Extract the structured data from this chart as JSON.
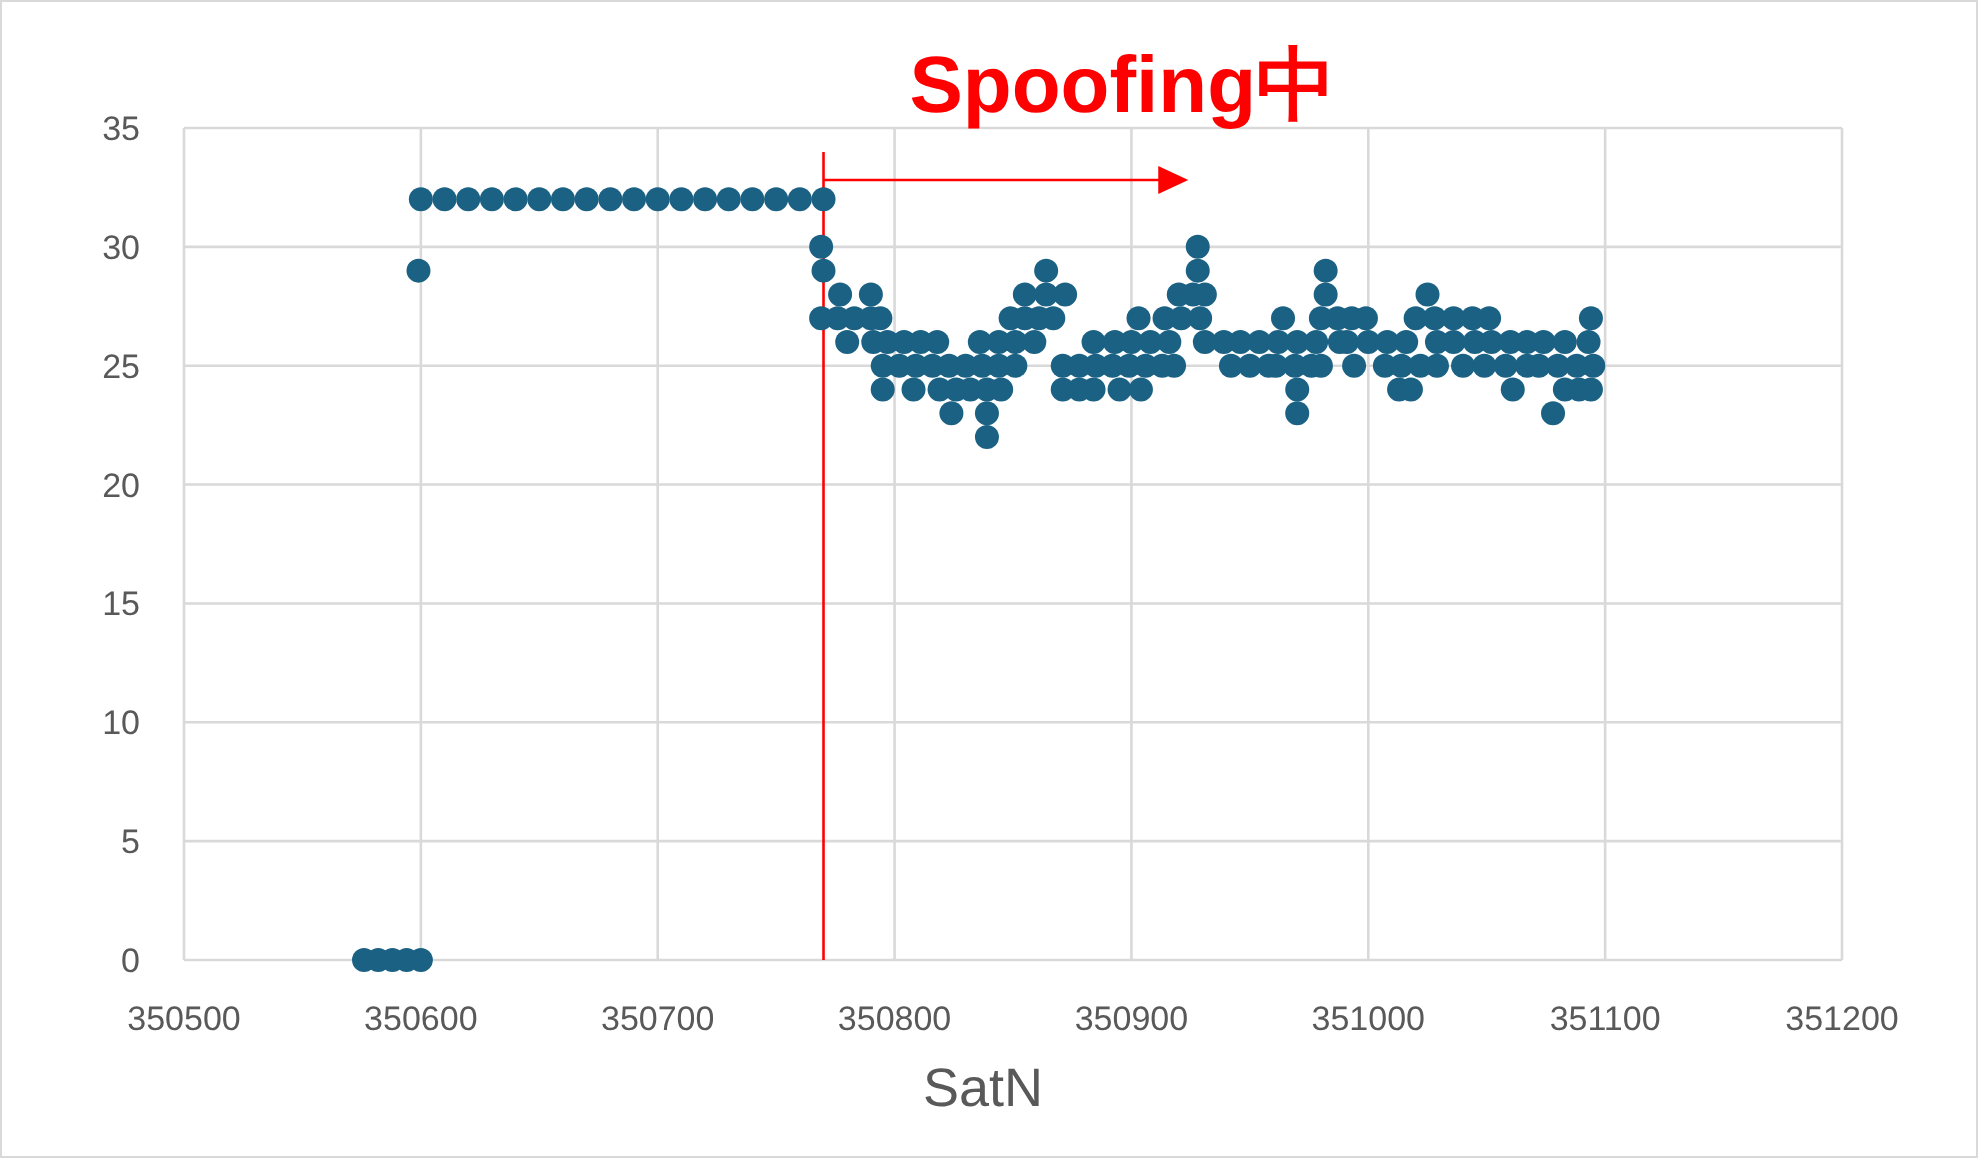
{
  "chart_data": {
    "type": "scatter",
    "xlabel": "SatN",
    "annotations": [
      "Spoofing中"
    ],
    "xlim": [
      350500,
      351200
    ],
    "xticks": [
      350500,
      350600,
      350700,
      350800,
      350900,
      351000,
      351100,
      351200
    ],
    "ylim": [
      0,
      35
    ],
    "yticks": [
      0,
      5,
      10,
      15,
      20,
      25,
      30,
      35
    ],
    "grid": true,
    "marker": "circle",
    "ref_lines": [
      {
        "axis": "x",
        "value": 350770,
        "color": "#ff0000"
      }
    ],
    "series": [
      {
        "color": "#1b6183",
        "x": [
          350576,
          350582,
          350588,
          350594,
          350600,
          350599,
          350600,
          350610,
          350620,
          350630,
          350640,
          350650,
          350660,
          350670,
          350680,
          350690,
          350700,
          350710,
          350720,
          350730,
          350740,
          350750,
          350760,
          350770,
          350769,
          350928,
          350770,
          350864,
          350928,
          350982,
          350777,
          350790,
          350855,
          350864,
          350872,
          350920,
          350926,
          350931,
          350982,
          351025,
          350769,
          350776,
          350783,
          350790,
          350794,
          350849,
          350855,
          350861,
          350867,
          350903,
          350914,
          350921,
          350929,
          350964,
          350980,
          350987,
          350993,
          350999,
          351020,
          351028,
          351036,
          351044,
          351051,
          351094,
          350780,
          350791,
          350797,
          350804,
          350811,
          350818,
          350836,
          350844,
          350851,
          350859,
          350884,
          350893,
          350900,
          350908,
          350916,
          350931,
          350939,
          350946,
          350954,
          350962,
          350970,
          350978,
          350988,
          350991,
          351000,
          351008,
          351016,
          351029,
          351036,
          351045,
          351052,
          351060,
          351067,
          351074,
          351083,
          351093,
          350795,
          350802,
          350809,
          350816,
          350823,
          350830,
          350837,
          350844,
          350851,
          350871,
          350878,
          350885,
          350892,
          350899,
          350906,
          350913,
          350918,
          350942,
          350950,
          350958,
          350961,
          350969,
          350976,
          350980,
          350994,
          351007,
          351014,
          351022,
          351029,
          351040,
          351049,
          351058,
          351067,
          351072,
          351080,
          351088,
          351095,
          350795,
          350808,
          350819,
          350826,
          350832,
          350839,
          350845,
          350871,
          350878,
          350884,
          350895,
          350904,
          350970,
          351013,
          351018,
          351061,
          351083,
          351089,
          351094,
          350824,
          350839,
          350970,
          351078,
          350839
        ],
        "values": [
          0,
          0,
          0,
          0,
          0,
          29,
          32,
          32,
          32,
          32,
          32,
          32,
          32,
          32,
          32,
          32,
          32,
          32,
          32,
          32,
          32,
          32,
          32,
          32,
          30,
          30,
          29,
          29,
          29,
          29,
          28,
          28,
          28,
          28,
          28,
          28,
          28,
          28,
          28,
          28,
          27,
          27,
          27,
          27,
          27,
          27,
          27,
          27,
          27,
          27,
          27,
          27,
          27,
          27,
          27,
          27,
          27,
          27,
          27,
          27,
          27,
          27,
          27,
          27,
          26,
          26,
          26,
          26,
          26,
          26,
          26,
          26,
          26,
          26,
          26,
          26,
          26,
          26,
          26,
          26,
          26,
          26,
          26,
          26,
          26,
          26,
          26,
          26,
          26,
          26,
          26,
          26,
          26,
          26,
          26,
          26,
          26,
          26,
          26,
          26,
          25,
          25,
          25,
          25,
          25,
          25,
          25,
          25,
          25,
          25,
          25,
          25,
          25,
          25,
          25,
          25,
          25,
          25,
          25,
          25,
          25,
          25,
          25,
          25,
          25,
          25,
          25,
          25,
          25,
          25,
          25,
          25,
          25,
          25,
          25,
          25,
          25,
          24,
          24,
          24,
          24,
          24,
          24,
          24,
          24,
          24,
          24,
          24,
          24,
          24,
          24,
          24,
          24,
          24,
          24,
          24,
          23,
          23,
          23,
          23,
          22
        ]
      }
    ]
  }
}
